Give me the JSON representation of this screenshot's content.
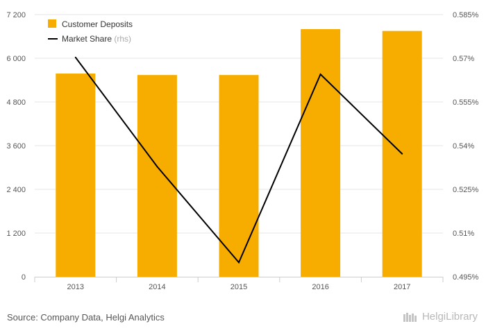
{
  "chart_data": {
    "type": "bar",
    "categories": [
      "2013",
      "2014",
      "2015",
      "2016",
      "2017"
    ],
    "series": [
      {
        "name": "Customer Deposits",
        "type": "bar",
        "axis": "left",
        "values": [
          5580,
          5540,
          5540,
          6800,
          6750
        ]
      },
      {
        "name": "Market Share",
        "type": "line",
        "axis": "right",
        "values": [
          0.5703,
          0.5328,
          0.4999,
          0.5645,
          0.5372
        ]
      }
    ],
    "y_left": {
      "ylim": [
        0,
        7200
      ],
      "ticks": [
        "0",
        "1 200",
        "2 400",
        "3 600",
        "4 800",
        "6 000",
        "7 200"
      ],
      "tick_values": [
        0,
        1200,
        2400,
        3600,
        4800,
        6000,
        7200
      ]
    },
    "y_right": {
      "ylim": [
        0.495,
        0.585
      ],
      "ticks": [
        "0.495%",
        "0.51%",
        "0.525%",
        "0.54%",
        "0.555%",
        "0.57%",
        "0.585%"
      ],
      "tick_values": [
        0.495,
        0.51,
        0.525,
        0.54,
        0.555,
        0.57,
        0.585
      ]
    },
    "legend": {
      "placement": "top-left",
      "items": [
        {
          "label": "Customer Deposits",
          "suffix": ""
        },
        {
          "label": "Market Share",
          "suffix": "(rhs)"
        }
      ]
    },
    "grid": true,
    "colors": {
      "bars": "#f7ad00",
      "line": "#000000",
      "grid": "#e6e6e6"
    }
  },
  "footer": {
    "source": "Source: Company Data, Helgi Analytics"
  },
  "brand": {
    "name": "HelgiLibrary"
  }
}
